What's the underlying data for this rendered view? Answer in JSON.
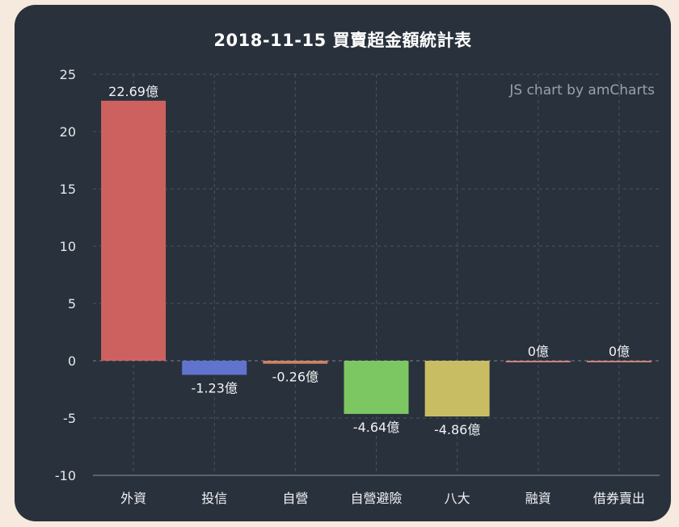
{
  "chart_data": {
    "type": "bar",
    "title": "2018-11-15 買賣超金額統計表",
    "credit": "JS chart by amCharts",
    "categories": [
      "外資",
      "投信",
      "自營",
      "自營避險",
      "八大",
      "融資",
      "借券賣出"
    ],
    "values": [
      22.69,
      -1.23,
      -0.26,
      -4.64,
      -4.86,
      0,
      0
    ],
    "data_labels": [
      "22.69億",
      "-1.23億",
      "-0.26億",
      "-4.64億",
      "-4.86億",
      "0億",
      "0億"
    ],
    "colors": [
      "#d66461",
      "#6378d6",
      "#d88866",
      "#82d064",
      "#d2c565",
      "#d38780",
      "#d38780"
    ],
    "ylim": [
      -10,
      25
    ],
    "yticks": [
      "25",
      "20",
      "15",
      "10",
      "5",
      "0",
      "-5",
      "-10"
    ],
    "ytick_values": [
      25,
      20,
      15,
      10,
      5,
      0,
      -5,
      -10
    ],
    "grid": true,
    "xlabel": "",
    "ylabel": ""
  }
}
